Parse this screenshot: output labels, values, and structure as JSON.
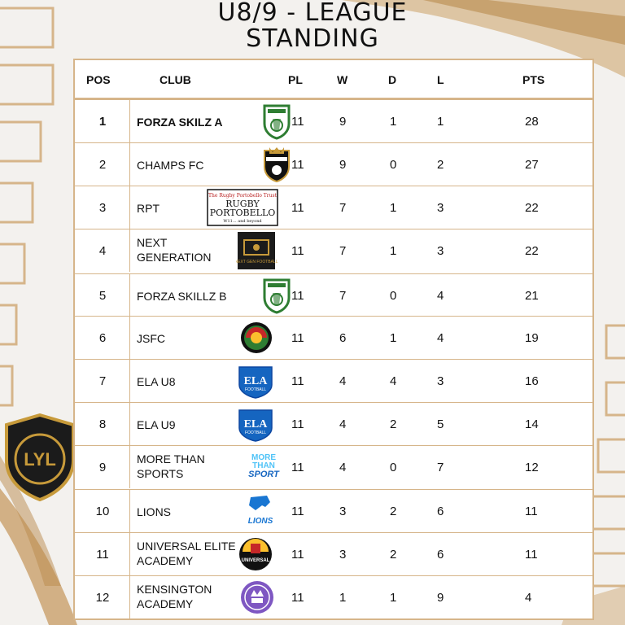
{
  "title_line1": "U8/9 - LEAGUE",
  "title_line2": "STANDING",
  "colors": {
    "gold": "#d6b58a",
    "badge_gold": "#c79a3a",
    "badge_dark": "#1b1b1b"
  },
  "headers": {
    "pos": "POS",
    "club": "CLUB",
    "pl": "PL",
    "w": "W",
    "d": "D",
    "l": "L",
    "pts": "PTS"
  },
  "rows": [
    {
      "pos": "1",
      "club1": "FORZA SKILZ A",
      "club2": "",
      "pl": "11",
      "w": "9",
      "d": "1",
      "l": "1",
      "pts": "28",
      "logo": "forza-skillz-crest-icon"
    },
    {
      "pos": "2",
      "club1": "CHAMPS FC",
      "club2": "",
      "pl": "11",
      "w": "9",
      "d": "0",
      "l": "2",
      "pts": "27",
      "logo": "champs-fc-crest-icon"
    },
    {
      "pos": "3",
      "club1": "RPT",
      "club2": "",
      "pl": "11",
      "w": "7",
      "d": "1",
      "l": "3",
      "pts": "22",
      "logo": "rugby-portobello-logo",
      "logo_text": {
        "top": "The Rugby Portobello Trust",
        "line1": "RUGBY",
        "line2": "PORTOBELLO",
        "tag": "W11... and beyond"
      }
    },
    {
      "pos": "4",
      "club1": "NEXT",
      "club2": "GENERATION",
      "pl": "11",
      "w": "7",
      "d": "1",
      "l": "3",
      "pts": "22",
      "logo": "next-generation-logo",
      "logo_text": {
        "small": "NEXT GEN FOOTBALL"
      }
    },
    {
      "pos": "5",
      "club1": "FORZA SKILLZ B",
      "club2": "",
      "pl": "11",
      "w": "7",
      "d": "0",
      "l": "4",
      "pts": "21",
      "logo": "forza-skillz-crest-icon"
    },
    {
      "pos": "6",
      "club1": "JSFC",
      "club2": "",
      "pl": "11",
      "w": "6",
      "d": "1",
      "l": "4",
      "pts": "19",
      "logo": "jsfc-crest-icon"
    },
    {
      "pos": "7",
      "club1": "ELA U8",
      "club2": "",
      "pl": "11",
      "w": "4",
      "d": "4",
      "l": "3",
      "pts": "16",
      "logo": "ela-football-crest-icon",
      "logo_text": {
        "big": "ELA",
        "small": "FOOTBALL"
      }
    },
    {
      "pos": "8",
      "club1": "ELA U9",
      "club2": "",
      "pl": "11",
      "w": "4",
      "d": "2",
      "l": "5",
      "pts": "14",
      "logo": "ela-football-crest-icon",
      "logo_text": {
        "big": "ELA",
        "small": "FOOTBALL"
      }
    },
    {
      "pos": "9",
      "club1": "MORE THAN",
      "club2": "SPORTS",
      "pl": "11",
      "w": "4",
      "d": "0",
      "l": "7",
      "pts": "12",
      "logo": "more-than-sport-logo",
      "logo_text": {
        "line1": "MORE",
        "line2": "THAN",
        "line3": "SPORT"
      }
    },
    {
      "pos": "10",
      "club1": "LIONS",
      "club2": "",
      "pl": "11",
      "w": "3",
      "d": "2",
      "l": "6",
      "pts": "11",
      "logo": "lions-logo",
      "logo_text": {
        "word": "LIONS"
      }
    },
    {
      "pos": "11",
      "club1": "UNIVERSAL ELITE",
      "club2": "ACADEMY",
      "pl": "11",
      "w": "3",
      "d": "2",
      "l": "6",
      "pts": "11",
      "logo": "universal-elite-crest-icon",
      "logo_text": {
        "word": "UNIVERSAL"
      }
    },
    {
      "pos": "12",
      "club1": "KENSINGTON",
      "club2": "ACADEMY",
      "pl": "11",
      "w": "1",
      "d": "1",
      "l": "9",
      "pts": "4",
      "logo": "kensington-academy-crest-icon"
    }
  ],
  "league_badge": {
    "text": "LYL"
  }
}
